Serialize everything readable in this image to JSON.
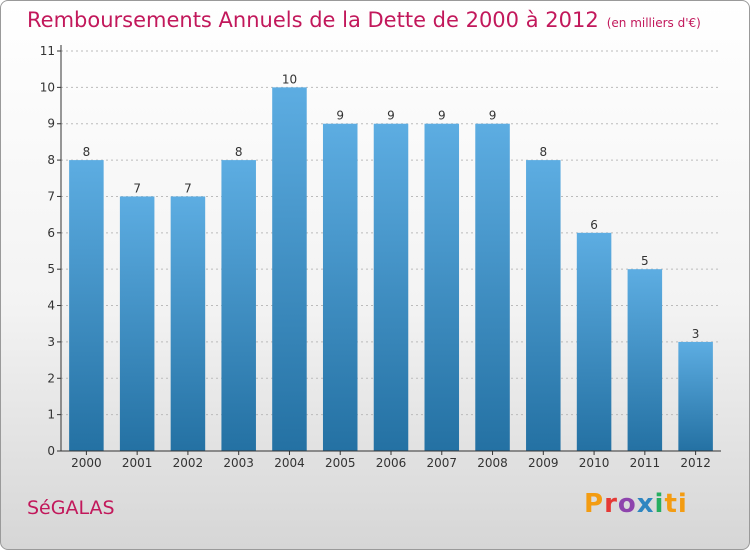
{
  "title": "Remboursements Annuels de la Dette de 2000 à 2012",
  "unit_note": "(en milliers d'€)",
  "commune": "SéGALAS",
  "logo_text": "Proxiti",
  "colors": {
    "title": "#c2185b",
    "bar_top": "#5dade2",
    "bar_bottom": "#2471a3",
    "axis": "#333333",
    "grid": "#bbbbbb"
  },
  "chart_data": {
    "type": "bar",
    "title": "Remboursements Annuels de la Dette de 2000 à 2012",
    "categories": [
      "2000",
      "2001",
      "2002",
      "2003",
      "2004",
      "2005",
      "2006",
      "2007",
      "2008",
      "2009",
      "2010",
      "2011",
      "2012"
    ],
    "values": [
      8,
      7,
      7,
      8,
      10,
      9,
      9,
      9,
      9,
      8,
      6,
      5,
      3
    ],
    "ylim": [
      0,
      11
    ],
    "yticks": [
      0,
      1,
      2,
      3,
      4,
      5,
      6,
      7,
      8,
      9,
      10,
      11
    ],
    "grid": true,
    "data_labels": true
  }
}
